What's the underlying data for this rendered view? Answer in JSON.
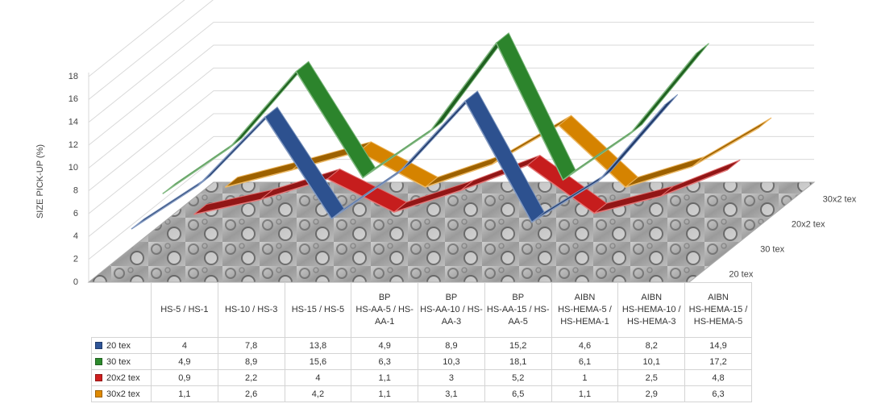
{
  "chart_data": {
    "type": "line3d",
    "y_label": "SIZE PICK-UP (%)",
    "ylim": [
      0,
      18
    ],
    "yticks": [
      0,
      2,
      4,
      6,
      8,
      10,
      12,
      14,
      16,
      18
    ],
    "grid": true,
    "categories": [
      [
        "HS-5 / HS-1"
      ],
      [
        "HS-10 / HS-3"
      ],
      [
        "HS-15 / HS-5"
      ],
      [
        "BP",
        "HS-AA-5 / HS-AA-1"
      ],
      [
        "BP",
        "HS-AA-10 / HS-AA-3"
      ],
      [
        "BP",
        "HS-AA-15 / HS-AA-5"
      ],
      [
        "AIBN",
        "HS-HEMA-5 / HS-HEMA-1"
      ],
      [
        "AIBN",
        "HS-HEMA-10 / HS-HEMA-3"
      ],
      [
        "AIBN",
        "HS-HEMA-15 / HS-HEMA-5"
      ]
    ],
    "series": [
      {
        "name": "20 tex",
        "color": "#2f5597",
        "values": [
          4,
          7.8,
          13.8,
          4.9,
          8.9,
          15.2,
          4.6,
          8.2,
          14.9
        ],
        "value_labels": [
          "4",
          "7,8",
          "13,8",
          "4,9",
          "8,9",
          "15,2",
          "4,6",
          "8,2",
          "14,9"
        ]
      },
      {
        "name": "30 tex",
        "color": "#2e8b2e",
        "values": [
          4.9,
          8.9,
          15.6,
          6.3,
          10.3,
          18.1,
          6.1,
          10.1,
          17.2
        ],
        "value_labels": [
          "4,9",
          "8,9",
          "15,6",
          "6,3",
          "10,3",
          "18,1",
          "6,1",
          "10,1",
          "17,2"
        ]
      },
      {
        "name": "20x2 tex",
        "color": "#d01f1f",
        "values": [
          0.9,
          2.2,
          4,
          1.1,
          3,
          5.2,
          1,
          2.5,
          4.8
        ],
        "value_labels": [
          "0,9",
          "2,2",
          "4",
          "1,1",
          "3",
          "5,2",
          "1",
          "2,5",
          "4,8"
        ]
      },
      {
        "name": "30x2 tex",
        "color": "#e08a00",
        "values": [
          1.1,
          2.6,
          4.2,
          1.1,
          3.1,
          6.5,
          1.1,
          2.9,
          6.3
        ],
        "value_labels": [
          "1,1",
          "2,6",
          "4,2",
          "1,1",
          "3,1",
          "6,5",
          "1,1",
          "2,9",
          "6,3"
        ]
      }
    ]
  }
}
